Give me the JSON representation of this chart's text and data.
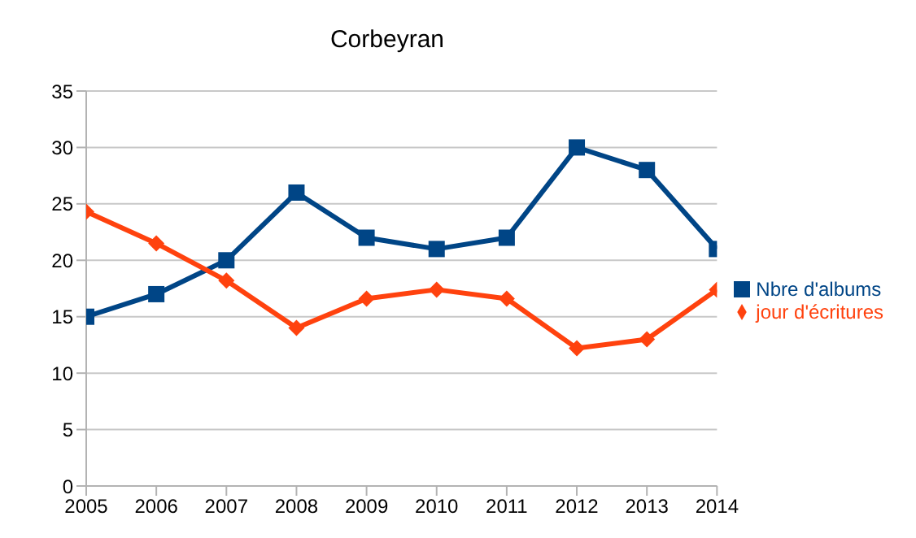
{
  "chart_data": {
    "type": "line",
    "title": "Corbeyran",
    "x": [
      2005,
      2006,
      2007,
      2008,
      2009,
      2010,
      2011,
      2012,
      2013,
      2014
    ],
    "xlim": [
      2005,
      2014
    ],
    "xticks": [
      2005,
      2006,
      2007,
      2008,
      2009,
      2010,
      2011,
      2012,
      2013,
      2014
    ],
    "ylim": [
      0,
      35
    ],
    "yticks": [
      0,
      5,
      10,
      15,
      20,
      25,
      30,
      35
    ],
    "grid": "y",
    "legend": "right",
    "series": [
      {
        "name": "Nbre d'albums",
        "color": "#004586",
        "marker": "square",
        "values": [
          15,
          17,
          20,
          26,
          22,
          21,
          22,
          30,
          28,
          21
        ]
      },
      {
        "name": "jour d'écritures",
        "color": "#ff420e",
        "marker": "diamond",
        "values": [
          24.3,
          21.5,
          18.2,
          14,
          16.6,
          17.4,
          16.6,
          12.2,
          13,
          17.4
        ]
      }
    ]
  }
}
